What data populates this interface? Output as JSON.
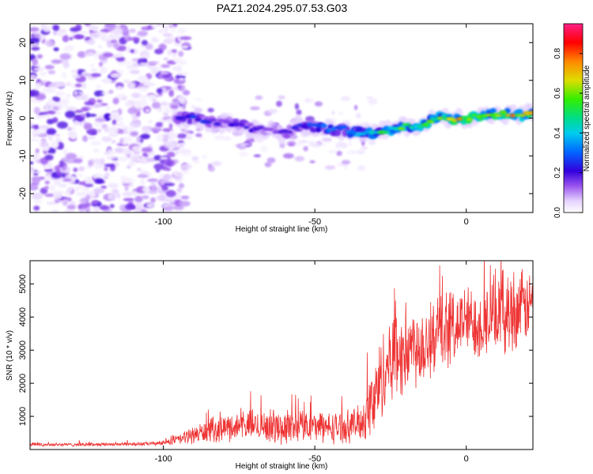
{
  "title": "PAZ1.2024.295.07.53.G03",
  "chart_data": [
    {
      "type": "heatmap",
      "xlabel": "Height of straight line (km)",
      "ylabel": "Frequency (Hz)",
      "xlim": [
        -144,
        22
      ],
      "ylim": [
        -25,
        25
      ],
      "x_ticks": [
        -100,
        -50,
        0
      ],
      "x_tick_labels": [
        "-100",
        "-50",
        "0"
      ],
      "y_ticks": [
        -20,
        -10,
        0,
        10,
        20
      ],
      "y_tick_labels": [
        "-20",
        "-10",
        "0",
        "10",
        "20"
      ],
      "colorbar": {
        "label": "Normalized spectral amplitude",
        "range": [
          0,
          0.95
        ],
        "ticks": [
          0,
          0.2,
          0.4,
          0.6,
          0.8
        ],
        "tick_labels": [
          "0.0",
          "0.2",
          "0.4",
          "0.6",
          "0.8"
        ],
        "colormap": "rainbow (white → violet → blue → cyan → green → yellow → red → magenta)"
      },
      "ridge": {
        "description": "Frequency of maximum spectral amplitude vs height",
        "x": [
          -95,
          -90,
          -85,
          -80,
          -75,
          -70,
          -65,
          -60,
          -55,
          -50,
          -45,
          -40,
          -35,
          -30,
          -25,
          -20,
          -15,
          -10,
          -5,
          0,
          5,
          10,
          15,
          20
        ],
        "frequency": [
          0,
          0,
          -1,
          -1,
          -2,
          -3,
          -3,
          -4,
          -2,
          -2,
          -3,
          -3,
          -4,
          -4,
          -3,
          -2,
          -2,
          0,
          0,
          0,
          1,
          1,
          1,
          1
        ],
        "amplitude": [
          0.25,
          0.25,
          0.25,
          0.2,
          0.25,
          0.2,
          0.15,
          0.2,
          0.25,
          0.3,
          0.35,
          0.35,
          0.45,
          0.5,
          0.55,
          0.6,
          0.55,
          0.6,
          0.75,
          0.75,
          0.75,
          0.75,
          0.75,
          0.75
        ]
      }
    },
    {
      "type": "line",
      "xlabel": "Height of straight line (km)",
      "ylabel": "SNR (10 * v/v)",
      "xlim": [
        -144,
        22
      ],
      "ylim": [
        0,
        5700
      ],
      "x_ticks": [
        -100,
        -50,
        0
      ],
      "x_tick_labels": [
        "-100",
        "-50",
        "0"
      ],
      "y_ticks": [
        1000,
        2000,
        3000,
        4000,
        5000
      ],
      "y_tick_labels": [
        "1000",
        "2000",
        "3000",
        "4000",
        "5000"
      ],
      "series": [
        {
          "color": "#ee3333",
          "envelope_x": [
            -144,
            -130,
            -115,
            -105,
            -100,
            -95,
            -90,
            -85,
            -80,
            -75,
            -70,
            -65,
            -60,
            -55,
            -50,
            -45,
            -40,
            -35,
            -32,
            -30,
            -28,
            -25,
            -20,
            -15,
            -10,
            -5,
            0,
            5,
            10,
            15,
            20,
            22
          ],
          "envelope_mean": [
            150,
            150,
            160,
            170,
            200,
            300,
            450,
            550,
            650,
            700,
            750,
            700,
            650,
            750,
            700,
            650,
            700,
            800,
            1200,
            1600,
            2200,
            2800,
            3000,
            3200,
            3400,
            3700,
            3900,
            3800,
            4100,
            4200,
            4300,
            4500
          ],
          "envelope_spread": [
            60,
            60,
            60,
            70,
            80,
            200,
            300,
            400,
            450,
            500,
            550,
            550,
            600,
            550,
            500,
            550,
            550,
            600,
            1200,
            1400,
            1500,
            1500,
            1600,
            1500,
            1400,
            1300,
            1200,
            1300,
            1400,
            1500,
            1200,
            1000
          ]
        }
      ]
    }
  ]
}
